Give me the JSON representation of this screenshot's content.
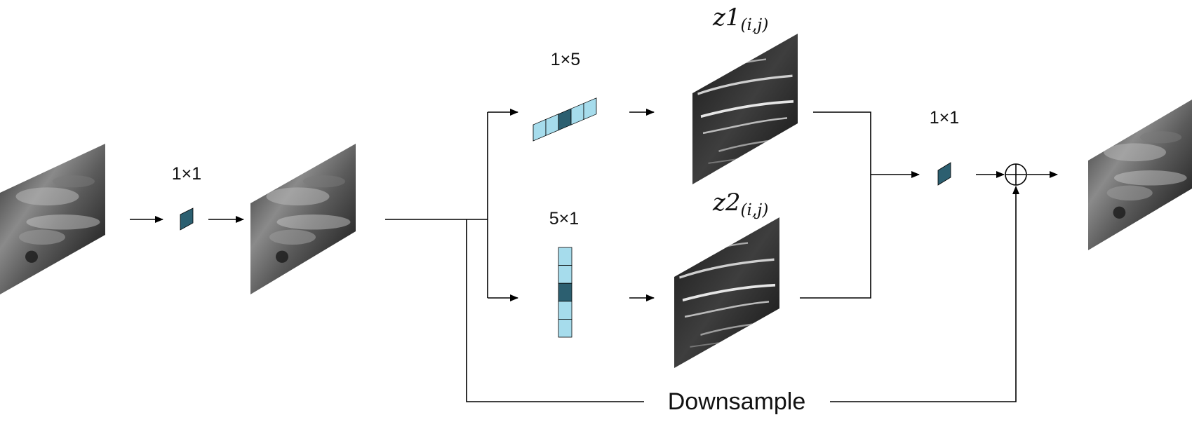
{
  "labels": {
    "conv_first": "1×1",
    "conv_row": "1×5",
    "conv_col": "5×1",
    "conv_fuse": "1×1",
    "downsample": "Downsample",
    "z1_main": "z1",
    "z1_sub": "(i,j)",
    "z2_main": "z2",
    "z2_sub": "(i,j)"
  },
  "colors": {
    "kernel_light": "#a6dcec",
    "kernel_dark": "#2c5f70",
    "line": "#000000",
    "background": "#ffffff"
  },
  "kernels": {
    "row_cells": 5,
    "row_highlight": 2,
    "col_cells": 5,
    "col_highlight": 2
  }
}
